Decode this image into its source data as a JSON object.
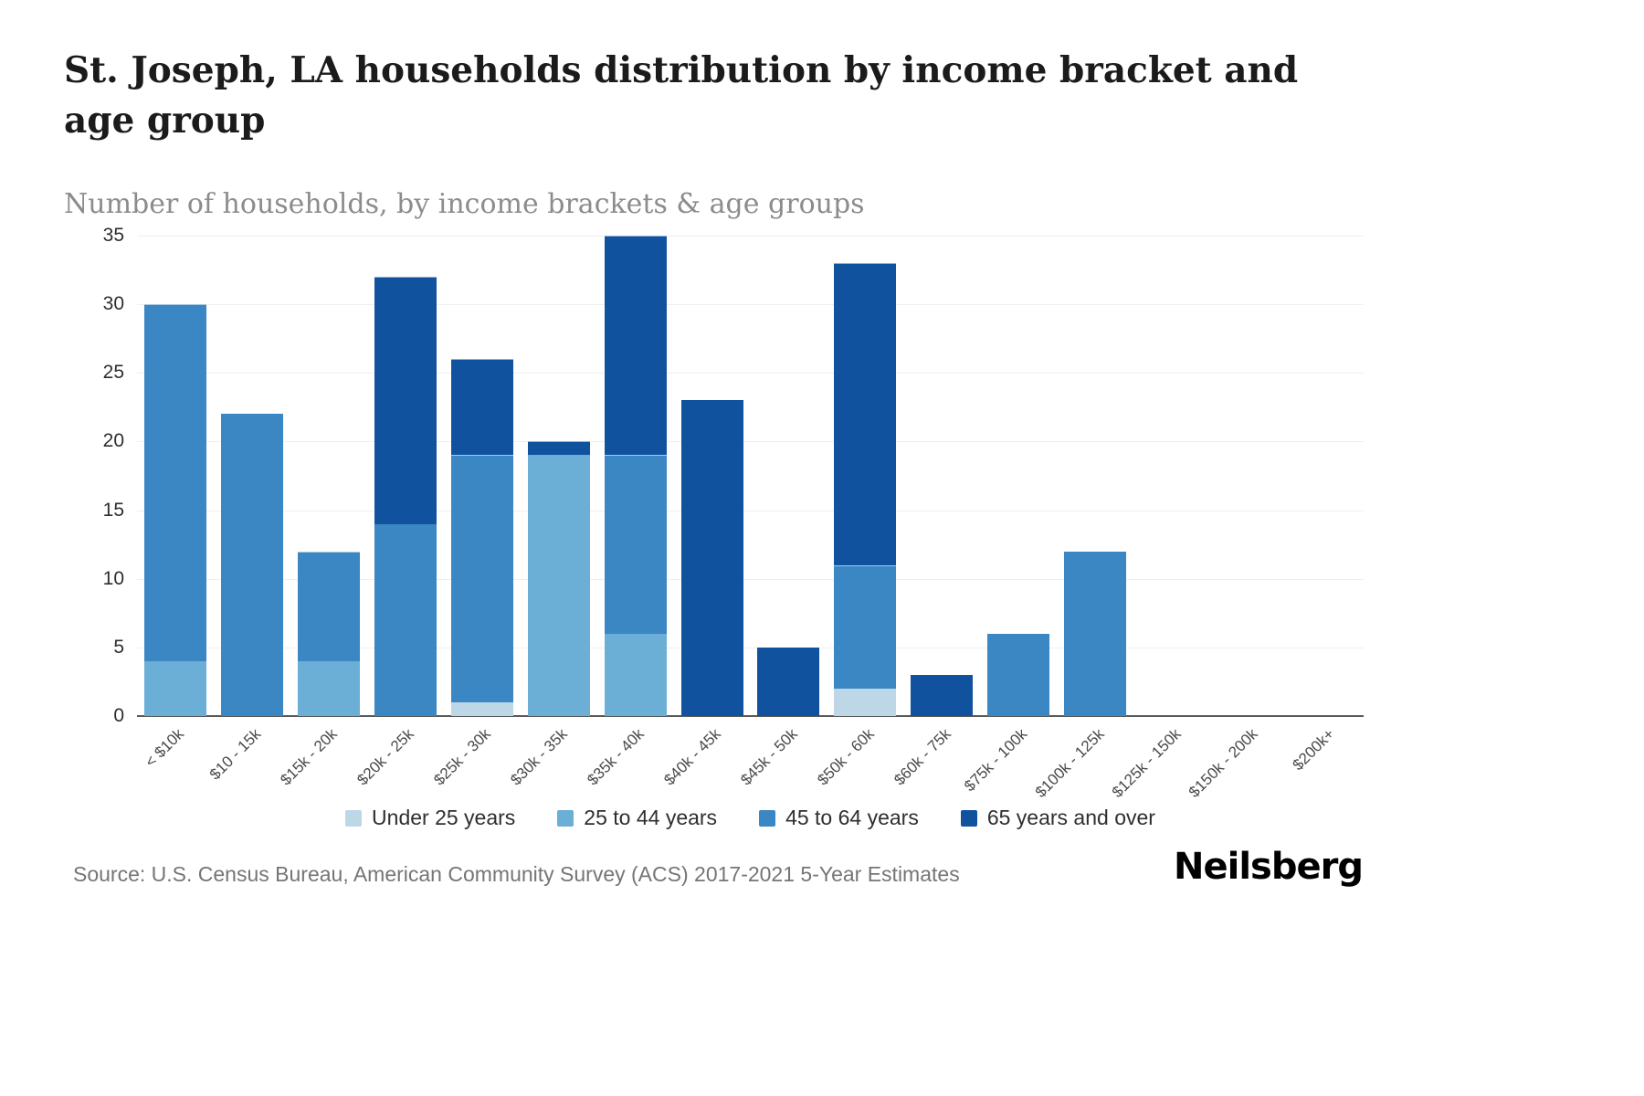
{
  "title": "St. Joseph, LA households distribution by income bracket and age group",
  "subtitle": "Number of households, by income brackets & age groups",
  "source": "Source: U.S. Census Bureau, American Community Survey (ACS) 2017-2021 5-Year Estimates",
  "logo": "Neilsberg",
  "colors": {
    "under_25": "#bdd7e7",
    "25_to_44": "#6baed6",
    "45_to_64": "#3a87c4",
    "65_and_over": "#11529f",
    "gridline": "#efefef",
    "axis": "#5a5a5a"
  },
  "chart_data": {
    "type": "bar",
    "stacked": true,
    "title": "St. Joseph, LA households distribution by income bracket and age group",
    "xlabel": "",
    "ylabel": "Number of households",
    "ylim": [
      0,
      35
    ],
    "yticks": [
      0,
      5,
      10,
      15,
      20,
      25,
      30,
      35
    ],
    "grid": true,
    "legend_position": "bottom",
    "categories": [
      "< $10k",
      "$10 - 15k",
      "$15k - 20k",
      "$20k - 25k",
      "$25k - 30k",
      "$30k - 35k",
      "$35k - 40k",
      "$40k - 45k",
      "$45k - 50k",
      "$50k - 60k",
      "$60k - 75k",
      "$75k - 100k",
      "$100k - 125k",
      "$125k - 150k",
      "$150k - 200k",
      "$200k+"
    ],
    "series": [
      {
        "name": "Under 25 years",
        "color": "#bdd7e7",
        "values": [
          0,
          0,
          0,
          0,
          1,
          0,
          0,
          0,
          0,
          2,
          0,
          0,
          0,
          0,
          0,
          0
        ]
      },
      {
        "name": "25 to 44 years",
        "color": "#6baed6",
        "values": [
          4,
          0,
          4,
          0,
          0,
          19,
          6,
          0,
          0,
          0,
          0,
          0,
          0,
          0,
          0,
          0
        ]
      },
      {
        "name": "45 to 64 years",
        "color": "#3a87c4",
        "values": [
          26,
          22,
          8,
          14,
          18,
          0,
          13,
          0,
          0,
          9,
          0,
          6,
          12,
          0,
          0,
          0
        ]
      },
      {
        "name": "65 years and over",
        "color": "#11529f",
        "values": [
          0,
          0,
          0,
          18,
          7,
          1,
          16,
          23,
          5,
          22,
          3,
          0,
          0,
          0,
          0,
          0
        ]
      }
    ],
    "totals": [
      30,
      22,
      12,
      32,
      26,
      20,
      35,
      23,
      5,
      33,
      3,
      6,
      12,
      0,
      0,
      0
    ]
  }
}
